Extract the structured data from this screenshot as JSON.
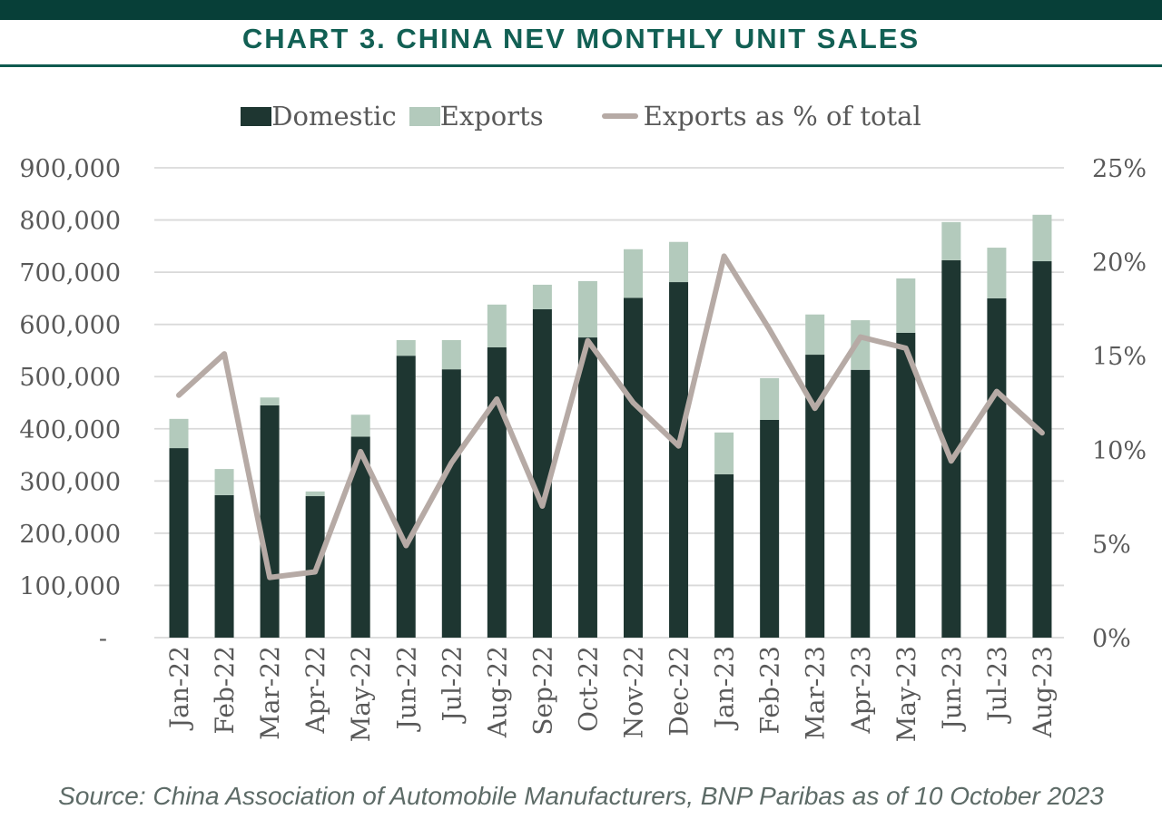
{
  "header": {
    "title": "CHART 3. CHINA NEV MONTHLY UNIT SALES"
  },
  "legend": {
    "domestic_label": "Domestic",
    "exports_label": "Exports",
    "line_label": "Exports as % of total"
  },
  "source": "Source: China Association of Automobile Manufacturers, BNP Paribas as of 10 October 2023",
  "colors": {
    "banner": "#073f38",
    "title": "#126054",
    "rule": "#0e5a4f",
    "domestic_bar": "#1e3631",
    "exports_bar": "#b3cabc",
    "pct_line": "#b6aaa5",
    "gridline": "#d9d9d9",
    "axis_text": "#595959",
    "source_text": "#5d6b67"
  },
  "chart_data": {
    "type": "bar",
    "subtype": "stacked-with-line",
    "title": "CHART 3. CHINA NEV MONTHLY UNIT SALES",
    "categories": [
      "Jan-22",
      "Feb-22",
      "Mar-22",
      "Apr-22",
      "May-22",
      "Jun-22",
      "Jul-22",
      "Aug-22",
      "Sep-22",
      "Oct-22",
      "Nov-22",
      "Dec-22",
      "Jan-23",
      "Feb-23",
      "Mar-23",
      "Apr-23",
      "May-23",
      "Jun-23",
      "Jul-23",
      "Aug-23"
    ],
    "series": [
      {
        "name": "Domestic",
        "type": "bar",
        "axis": "left",
        "values": [
          363000,
          273000,
          445000,
          271000,
          385000,
          540000,
          514000,
          556000,
          629000,
          575000,
          651000,
          681000,
          313000,
          417000,
          542000,
          513000,
          584000,
          723000,
          650000,
          721000
        ]
      },
      {
        "name": "Exports",
        "type": "bar",
        "axis": "left",
        "values": [
          56000,
          50000,
          15000,
          9000,
          42000,
          30000,
          56000,
          82000,
          47000,
          108000,
          93000,
          77000,
          80000,
          80000,
          77000,
          95000,
          104000,
          73000,
          97000,
          89000
        ]
      },
      {
        "name": "Exports as % of total",
        "type": "line",
        "axis": "right",
        "values_pct": [
          12.9,
          15.1,
          3.2,
          3.5,
          9.9,
          4.9,
          9.3,
          12.7,
          7.0,
          15.8,
          12.5,
          10.2,
          20.3,
          16.4,
          12.2,
          16.0,
          15.4,
          9.4,
          13.1,
          10.9
        ]
      }
    ],
    "left_axis": {
      "min": 0,
      "max": 900000,
      "step": 100000,
      "tick_labels": [
        "900,000",
        "800,000",
        "700,000",
        "600,000",
        "500,000",
        "400,000",
        "300,000",
        "200,000",
        "100,000",
        "-"
      ]
    },
    "right_axis": {
      "min": 0,
      "max": 25,
      "step": 5,
      "tick_labels": [
        "25%",
        "20%",
        "15%",
        "10%",
        "5%",
        "0%"
      ]
    },
    "grid": true,
    "legend_position": "top"
  }
}
